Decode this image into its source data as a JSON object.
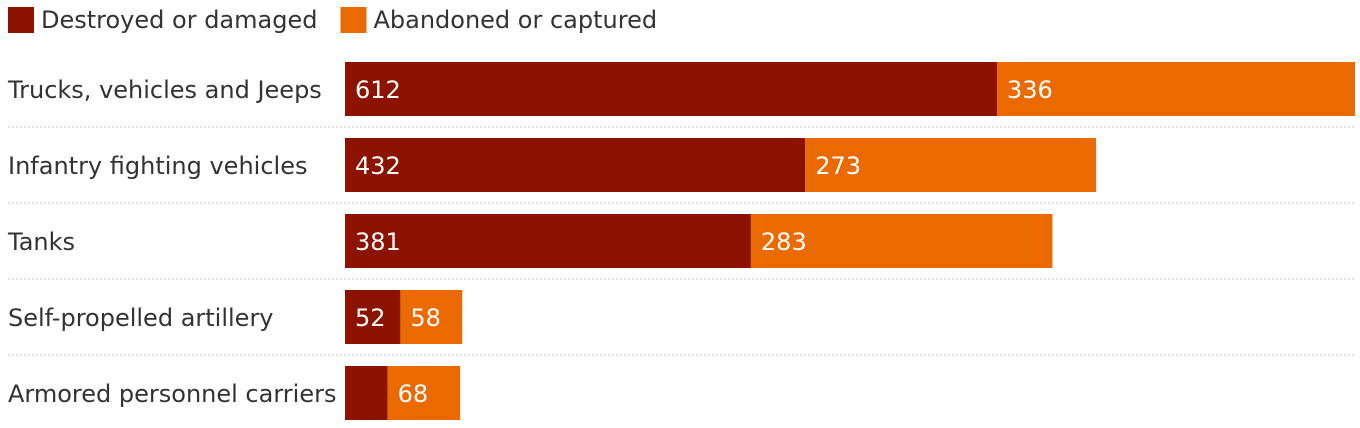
{
  "chart_data": {
    "type": "bar",
    "orientation": "horizontal",
    "stacked": true,
    "legend": "top-left",
    "grid": false,
    "colors": {
      "Destroyed or damaged": "#8b1300",
      "Abandoned or captured": "#eb6a00"
    },
    "categories": [
      "Trucks, vehicles and Jeeps",
      "Infantry fighting vehicles",
      "Tanks",
      "Self-propelled artillery",
      "Armored personnel carriers"
    ],
    "series": [
      {
        "name": "Destroyed or damaged",
        "values": [
          612,
          432,
          381,
          52,
          40
        ],
        "labels": [
          "612",
          "432",
          "381",
          "52",
          ""
        ]
      },
      {
        "name": "Abandoned or captured",
        "values": [
          336,
          273,
          283,
          58,
          68
        ],
        "labels": [
          "336",
          "273",
          "283",
          "58",
          "68"
        ]
      }
    ],
    "xlim": [
      0,
      948
    ]
  }
}
